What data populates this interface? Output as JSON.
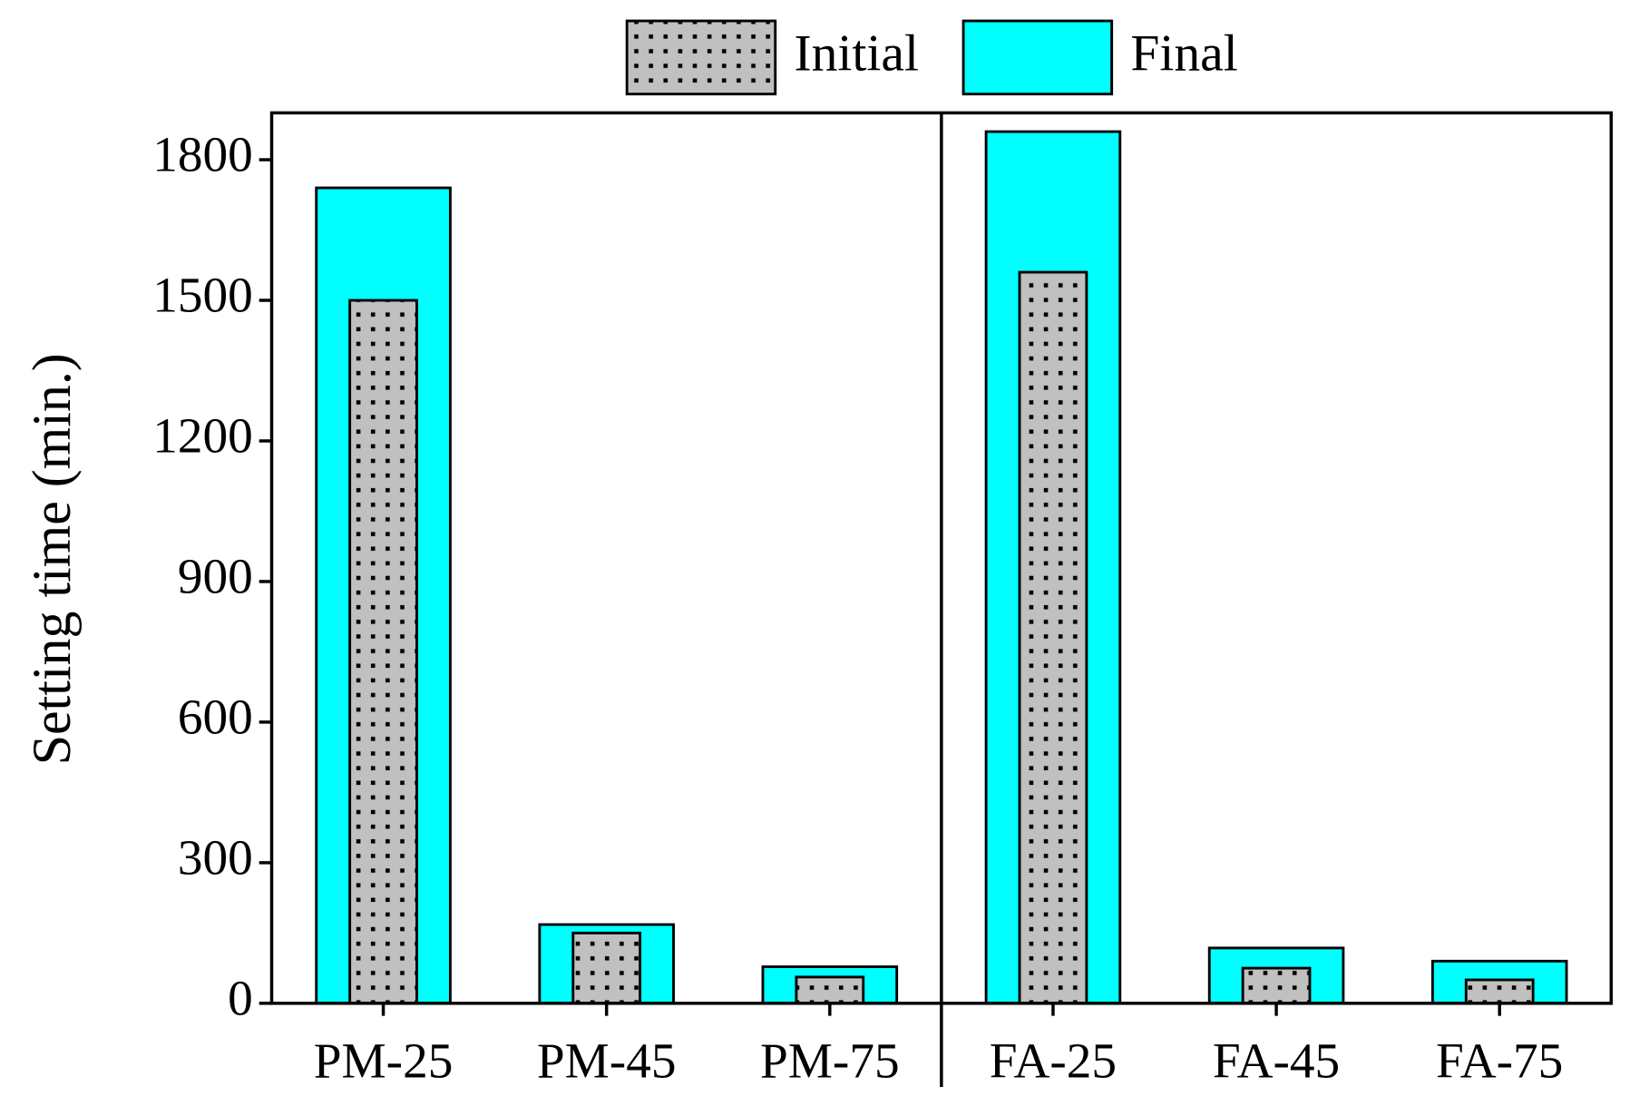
{
  "chart_data": {
    "type": "bar",
    "y_label": "Setting time (min.)",
    "categories": [
      "PM-25",
      "PM-45",
      "PM-75",
      "FA-25",
      "FA-45",
      "FA-75"
    ],
    "series": [
      {
        "name": "Initial",
        "color": "#c0c0c0",
        "values": [
          1500,
          150,
          56,
          1560,
          75,
          50
        ]
      },
      {
        "name": "Final",
        "color": "#00ffff",
        "values": [
          1740,
          168,
          78,
          1860,
          118,
          90
        ]
      }
    ],
    "ylim": [
      0,
      1900
    ],
    "yticks": [
      0,
      300,
      600,
      900,
      1200,
      1500,
      1800
    ],
    "legend": "top"
  }
}
